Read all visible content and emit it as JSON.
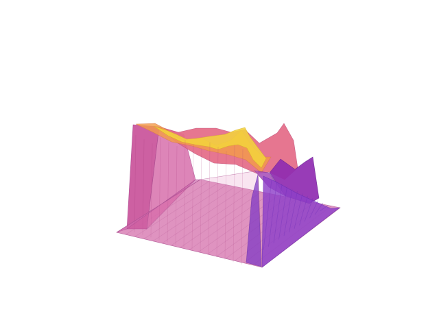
{
  "scene": {
    "kind": "3d-surface-render",
    "colormap": [
      "#0d0887",
      "#7e03a8",
      "#cc4778",
      "#f89540",
      "#f0f921"
    ],
    "colors": {
      "background": "#ffffff",
      "floor": "#d986b6",
      "floor_edge": "#b25796",
      "front_curtain": "#c45ca3",
      "right_curtain": "#8e3fc8",
      "left_wall": "#c84f98",
      "top_pink": "#e46c88",
      "top_orange": "#f39b4a",
      "top_yellow": "#f2d33c",
      "top_purple": "#8f2bb1",
      "deep_purple": "#5f1fc5"
    },
    "surface_opacity": 0.85
  }
}
